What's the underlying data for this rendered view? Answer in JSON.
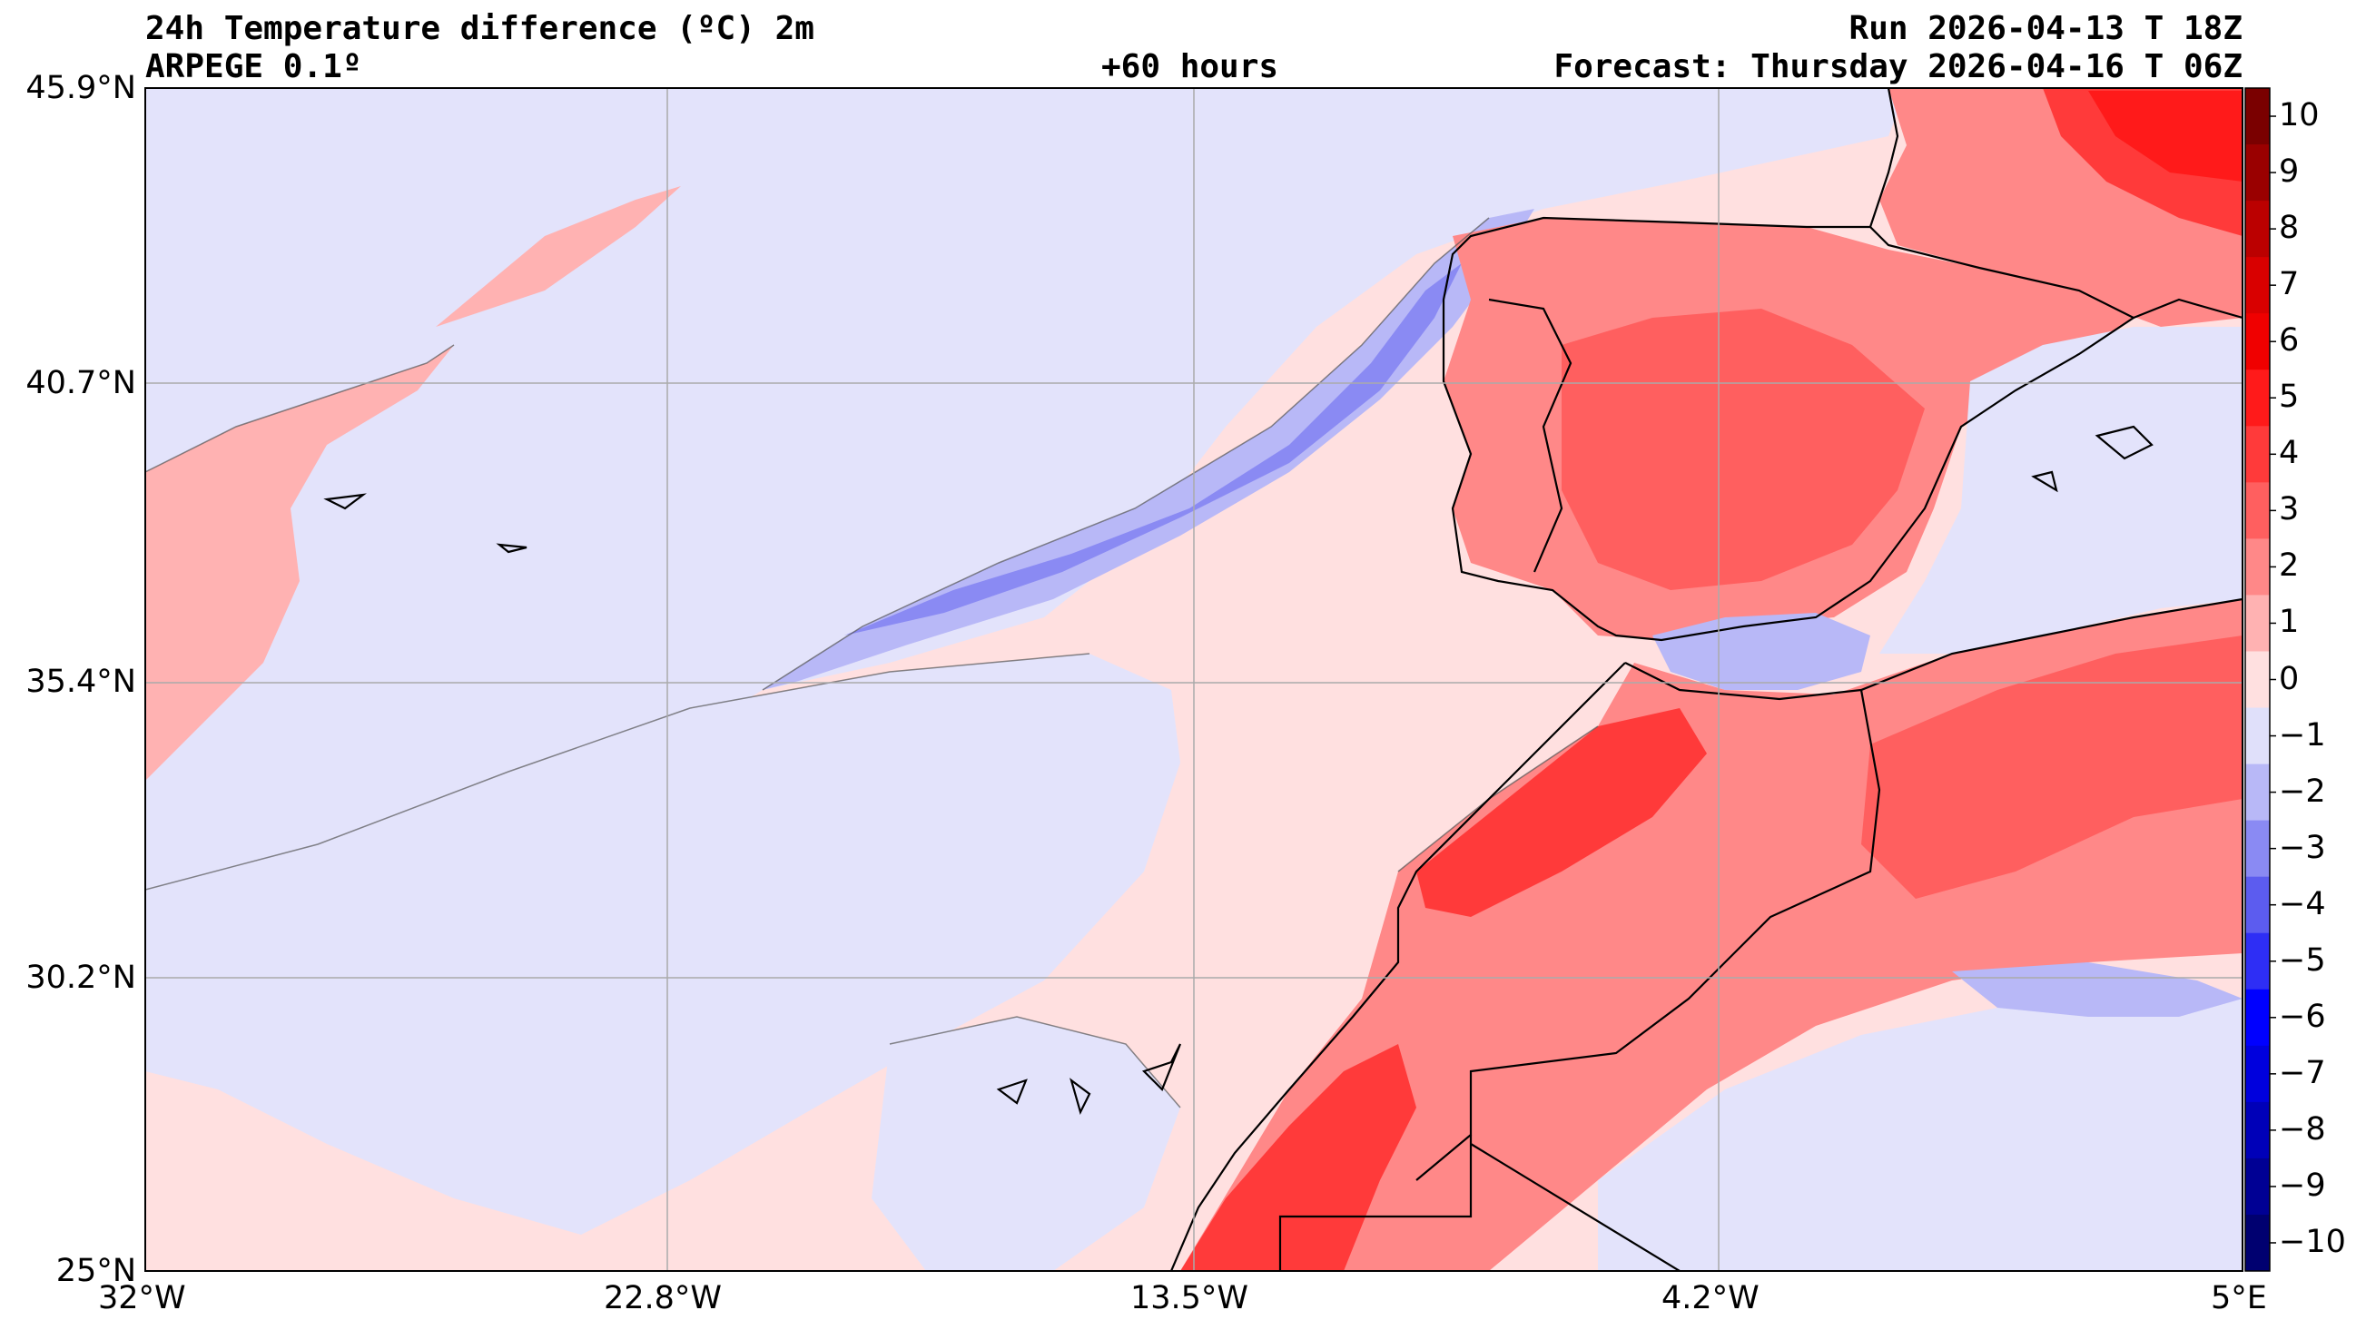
{
  "header": {
    "title": "24h Temperature difference (ºC) 2m",
    "model": "ARPEGE 0.1º",
    "lead_time": "+60 hours",
    "run": "Run 2026-04-13 T 18Z",
    "forecast": "Forecast: Thursday 2026-04-16 T 06Z"
  },
  "map": {
    "lon_range": [
      -32,
      5
    ],
    "lat_range": [
      25,
      45.9
    ],
    "grid": true,
    "lat_ticks": [
      {
        "value": 45.9,
        "label": "45.9°N"
      },
      {
        "value": 40.7,
        "label": "40.7°N"
      },
      {
        "value": 35.4,
        "label": "35.4°N"
      },
      {
        "value": 30.2,
        "label": "30.2°N"
      },
      {
        "value": 25.0,
        "label": "25°N"
      }
    ],
    "lon_ticks": [
      {
        "value": -32,
        "label": "32°W"
      },
      {
        "value": -22.8,
        "label": "22.8°W"
      },
      {
        "value": -13.5,
        "label": "13.5°W"
      },
      {
        "value": -4.2,
        "label": "4.2°W"
      },
      {
        "value": 5,
        "label": "5°E"
      }
    ]
  },
  "colorbar": {
    "labels": [
      "10",
      "9",
      "8",
      "7",
      "6",
      "5",
      "4",
      "3",
      "2",
      "1",
      "0",
      "−1",
      "−2",
      "−3",
      "−4",
      "−5",
      "−6",
      "−7",
      "−8",
      "−9",
      "−10"
    ],
    "colors": [
      "#7a0000",
      "#9a0000",
      "#bb0000",
      "#d90000",
      "#f00000",
      "#ff1a1a",
      "#ff3a3a",
      "#ff5f5f",
      "#ff8888",
      "#ffb2b2",
      "#ffe0e0",
      "#e0e0fa",
      "#b8b8f7",
      "#8a8af3",
      "#5c5cef",
      "#2e2ef5",
      "#0000ff",
      "#0000dd",
      "#0000b8",
      "#000094",
      "#000070"
    ]
  },
  "colors": {
    "ocean_base": "#e3e3fb",
    "warm_base": "#ffe0e0",
    "coast": "#000000"
  }
}
